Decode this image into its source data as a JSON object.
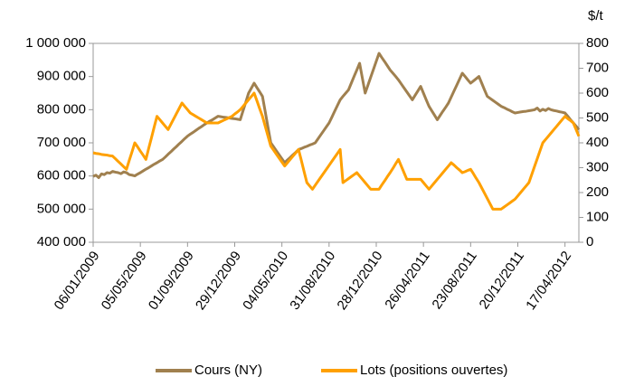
{
  "chart_data": {
    "type": "line",
    "y2_title": "$/t",
    "categories": [
      "06/01/2009",
      null,
      null,
      null,
      null,
      null,
      null,
      null,
      null,
      null,
      null,
      null,
      null,
      null,
      null,
      null,
      null,
      "05/05/2009",
      null,
      null,
      null,
      null,
      null,
      null,
      null,
      null,
      null,
      null,
      null,
      null,
      null,
      null,
      null,
      null,
      "01/09/2009",
      null,
      null,
      null,
      null,
      null,
      null,
      null,
      null,
      null,
      null,
      null,
      null,
      null,
      null,
      null,
      null,
      "29/12/2009",
      null,
      null,
      null,
      null,
      null,
      null,
      null,
      null,
      null,
      null,
      null,
      null,
      null,
      null,
      null,
      null,
      "04/05/2010",
      null,
      null,
      null,
      null,
      null,
      null,
      null,
      null,
      null,
      null,
      null,
      null,
      null,
      null,
      null,
      null,
      "31/08/2010",
      null,
      null,
      null,
      null,
      null,
      null,
      null,
      null,
      null,
      null,
      null,
      null,
      null,
      null,
      null,
      null,
      "28/12/2010",
      null,
      null,
      null,
      null,
      null,
      null,
      null,
      null,
      null,
      null,
      null,
      null,
      null,
      null,
      null,
      null,
      "26/04/2011",
      null,
      null,
      null,
      null,
      null,
      null,
      null,
      null,
      null,
      null,
      null,
      null,
      null,
      null,
      null,
      null,
      "23/08/2011",
      null,
      null,
      null,
      null,
      null,
      null,
      null,
      null,
      null,
      null,
      null,
      null,
      null,
      null,
      null,
      null,
      "20/12/2011",
      null,
      null,
      null,
      null,
      null,
      null,
      null,
      null,
      null,
      null,
      null,
      null,
      null,
      null,
      null,
      null,
      "17/04/2012",
      null,
      null,
      null,
      null,
      null
    ],
    "series": [
      {
        "name": "Cours (NY)",
        "color": "#A0804F",
        "axis": "y2",
        "values": [
          265,
          270,
          260,
          275,
          272,
          280,
          278,
          285,
          282,
          280,
          276,
          283,
          280,
          272,
          270,
          267,
          274,
          280,
          287,
          294,
          300,
          307,
          314,
          320,
          327,
          333,
          343,
          354,
          364,
          375,
          385,
          396,
          406,
          417,
          427,
          435,
          442,
          450,
          458,
          465,
          473,
          480,
          487,
          493,
          500,
          507,
          505,
          503,
          502,
          500,
          498,
          497,
          495,
          493,
          529,
          564,
          600,
          620,
          640,
          622,
          605,
          587,
          525,
          462,
          400,
          384,
          368,
          352,
          336,
          320,
          331,
          341,
          352,
          362,
          373,
          377,
          382,
          386,
          391,
          395,
          400,
          416,
          432,
          448,
          464,
          480,
          503,
          527,
          550,
          573,
          587,
          600,
          613,
          640,
          667,
          693,
          720,
          660,
          600,
          632,
          664,
          696,
          728,
          760,
          743,
          727,
          710,
          693,
          680,
          667,
          653,
          637,
          621,
          605,
          589,
          573,
          591,
          609,
          627,
          600,
          573,
          547,
          529,
          511,
          493,
          510,
          527,
          543,
          560,
          584,
          608,
          632,
          656,
          680,
          667,
          653,
          640,
          649,
          658,
          667,
          640,
          613,
          587,
          579,
          571,
          563,
          555,
          547,
          542,
          536,
          531,
          525,
          520,
          522,
          524,
          526,
          527,
          529,
          531,
          533,
          540,
          528,
          535,
          530,
          538,
          533,
          530,
          528,
          525,
          523,
          520,
          507,
          493,
          480,
          467,
          453
        ]
      },
      {
        "name": "Lots (positions ouvertes)",
        "color": "#FFA000",
        "axis": "y",
        "values": [
          670000,
          668000,
          667000,
          665000,
          664000,
          663000,
          661000,
          660000,
          652000,
          644000,
          636000,
          628000,
          620000,
          647000,
          673000,
          700000,
          688000,
          675000,
          663000,
          650000,
          683000,
          715000,
          748000,
          780000,
          770000,
          760000,
          750000,
          740000,
          756000,
          772000,
          788000,
          804000,
          820000,
          810000,
          800000,
          790000,
          785000,
          780000,
          775000,
          770000,
          765000,
          760000,
          760000,
          760000,
          760000,
          760000,
          764000,
          768000,
          772000,
          776000,
          780000,
          787000,
          793000,
          800000,
          810000,
          820000,
          830000,
          840000,
          850000,
          827000,
          803000,
          780000,
          750000,
          720000,
          690000,
          678000,
          666000,
          654000,
          642000,
          630000,
          640000,
          650000,
          660000,
          670000,
          680000,
          647000,
          613000,
          580000,
          570000,
          560000,
          572000,
          584000,
          596000,
          608000,
          620000,
          632000,
          644000,
          656000,
          668000,
          680000,
          580000,
          586000,
          592000,
          598000,
          604000,
          610000,
          600000,
          590000,
          580000,
          570000,
          560000,
          560000,
          560000,
          560000,
          573000,
          585000,
          598000,
          610000,
          623000,
          637000,
          650000,
          630000,
          610000,
          590000,
          590000,
          590000,
          590000,
          590000,
          590000,
          580000,
          570000,
          560000,
          570000,
          580000,
          590000,
          600000,
          610000,
          620000,
          630000,
          640000,
          633000,
          625000,
          618000,
          610000,
          613000,
          617000,
          620000,
          607000,
          593000,
          580000,
          564000,
          548000,
          532000,
          516000,
          500000,
          500000,
          500000,
          500000,
          506000,
          512000,
          518000,
          524000,
          530000,
          540000,
          550000,
          560000,
          570000,
          580000,
          604000,
          628000,
          652000,
          676000,
          700000,
          710000,
          720000,
          730000,
          740000,
          750000,
          760000,
          770000,
          780000,
          773000,
          767000,
          760000,
          740000,
          720000
        ]
      }
    ],
    "ylim": [
      400000,
      1000000
    ],
    "yticks": [
      {
        "value": 400000,
        "label": "400 000"
      },
      {
        "value": 500000,
        "label": "500 000"
      },
      {
        "value": 600000,
        "label": "600 000"
      },
      {
        "value": 700000,
        "label": "700 000"
      },
      {
        "value": 800000,
        "label": "800 000"
      },
      {
        "value": 900000,
        "label": "900 000"
      },
      {
        "value": 1000000,
        "label": "1 000 000"
      }
    ],
    "y2lim": [
      0,
      800
    ],
    "y2ticks": [
      0,
      100,
      200,
      300,
      400,
      500,
      600,
      700,
      800
    ],
    "grid": false
  }
}
